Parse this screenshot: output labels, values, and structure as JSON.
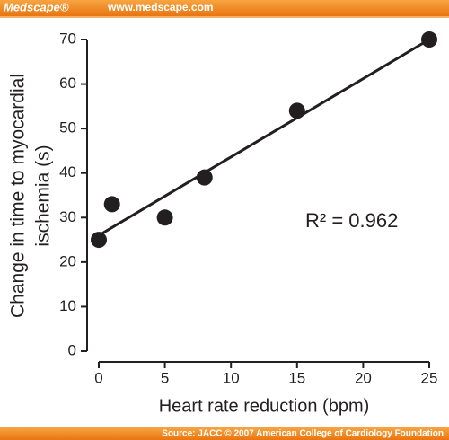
{
  "header": {
    "brand": "Medscape®",
    "url": "www.medscape.com"
  },
  "footer": {
    "source": "Source: JACC © 2007 American College of Cardiology Foundation"
  },
  "chart_data": {
    "type": "scatter",
    "x_label": "Heart rate reduction (bpm)",
    "y_label": [
      "Change in time to myocardial",
      "ischemia (s)"
    ],
    "annotation": "R² = 0.962",
    "x": [
      0,
      1,
      5,
      8,
      15,
      25
    ],
    "values": [
      25,
      33,
      30,
      39,
      54,
      70
    ],
    "color": "#231f20",
    "trendline": {
      "x": [
        0,
        25
      ],
      "y": [
        26,
        70
      ]
    },
    "xlim": [
      0,
      25
    ],
    "xticks": [
      0,
      5,
      10,
      15,
      20,
      25
    ],
    "ylim": [
      0,
      70
    ],
    "yticks": [
      0,
      10,
      20,
      30,
      40,
      50,
      60,
      70
    ],
    "grid": false
  }
}
